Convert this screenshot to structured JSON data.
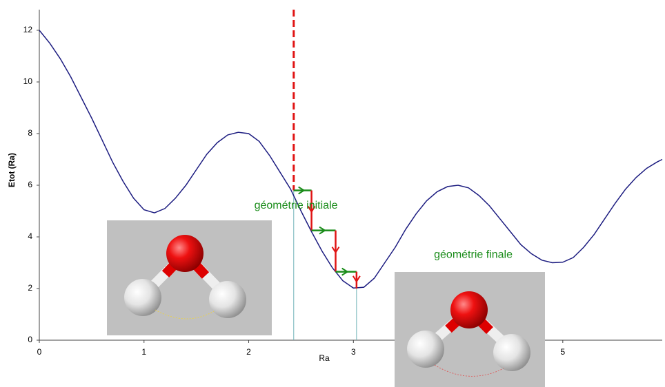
{
  "chart_data": {
    "type": "line",
    "x_label": "Ra",
    "y_label": "Etot (Ra)",
    "xlim": [
      0,
      5.95
    ],
    "ylim": [
      0,
      12.8
    ],
    "xticks": [
      0,
      1,
      2,
      3,
      4,
      5
    ],
    "yticks": [
      0,
      2,
      4,
      6,
      8,
      10,
      12
    ],
    "series": [
      {
        "color": "#1c1c80",
        "x": [
          0,
          0.1,
          0.2,
          0.3,
          0.4,
          0.5,
          0.6,
          0.7,
          0.8,
          0.9,
          1.0,
          1.1,
          1.2,
          1.3,
          1.4,
          1.5,
          1.6,
          1.7,
          1.8,
          1.9,
          2.0,
          2.1,
          2.2,
          2.3,
          2.4,
          2.5,
          2.6,
          2.7,
          2.8,
          2.9,
          3.0,
          3.1,
          3.2,
          3.3,
          3.4,
          3.5,
          3.6,
          3.7,
          3.8,
          3.9,
          4.0,
          4.1,
          4.2,
          4.3,
          4.4,
          4.5,
          4.6,
          4.7,
          4.8,
          4.9,
          5.0,
          5.1,
          5.2,
          5.3,
          5.4,
          5.5,
          5.6,
          5.7,
          5.8,
          5.9,
          5.95
        ],
        "values": [
          12,
          11.5,
          10.9,
          10.2,
          9.4,
          8.6,
          7.75,
          6.9,
          6.15,
          5.5,
          5.05,
          4.93,
          5.1,
          5.5,
          6.0,
          6.6,
          7.2,
          7.65,
          7.95,
          8.05,
          8.0,
          7.7,
          7.15,
          6.5,
          5.85,
          5.0,
          4.2,
          3.45,
          2.8,
          2.3,
          2.02,
          2.05,
          2.4,
          3.0,
          3.6,
          4.3,
          4.9,
          5.4,
          5.75,
          5.95,
          6.0,
          5.9,
          5.6,
          5.2,
          4.7,
          4.2,
          3.7,
          3.35,
          3.1,
          3.0,
          3.02,
          3.2,
          3.6,
          4.1,
          4.7,
          5.3,
          5.85,
          6.3,
          6.65,
          6.9,
          7.0
        ]
      }
    ],
    "steps": {
      "x": [
        2.43,
        2.6,
        2.6,
        2.83,
        2.83,
        3.03,
        3.03
      ],
      "y": [
        5.8,
        5.8,
        4.25,
        4.25,
        2.65,
        2.65,
        2.0
      ],
      "horizontal_color": "#1a8c1a",
      "vertical_color": "#e01414"
    },
    "annotations": [
      {
        "text": "géométrie initiale",
        "x": 2.85,
        "y": 5.2
      },
      {
        "text": "géométrie finale",
        "x": 4.52,
        "y": 3.3
      }
    ],
    "annotation_color": "#1a8c1a"
  }
}
